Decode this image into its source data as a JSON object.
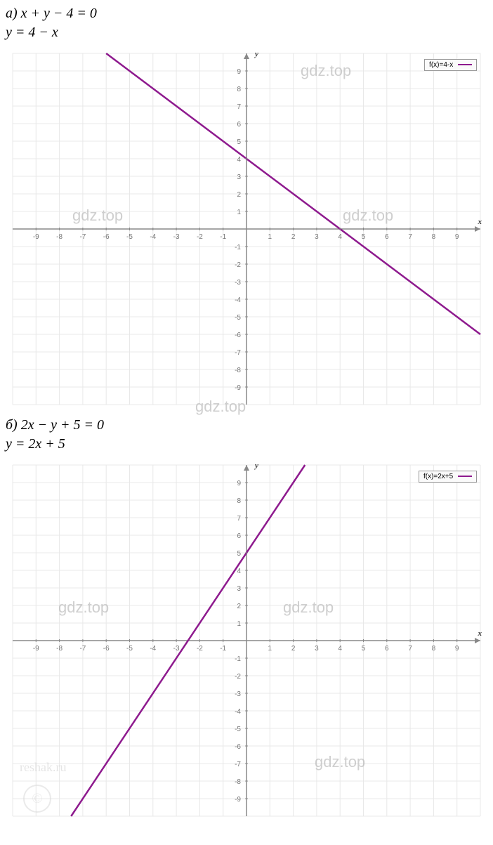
{
  "problem_a": {
    "label": "а)",
    "equation1": "x + y − 4 = 0",
    "equation2": "y = 4 − x"
  },
  "problem_b": {
    "label": "б)",
    "equation1": "2x − y + 5 = 0",
    "equation2": "y = 2x + 5"
  },
  "chart_a": {
    "type": "line",
    "legend_text": "f(x)=4-x",
    "line_color": "#8e1a8e",
    "line_width": 2.5,
    "xlim": [
      -10,
      10
    ],
    "ylim": [
      -10,
      10
    ],
    "xtick_step": 1,
    "ytick_step": 1,
    "grid_color": "#e8e8e8",
    "axis_color": "#888888",
    "background_color": "#ffffff",
    "x_axis_label": "x",
    "y_axis_label": "y",
    "line_points": [
      [
        -6,
        10
      ],
      [
        10,
        -6
      ]
    ],
    "watermarks": [
      "gdz.top",
      "gdz.top",
      "gdz.top",
      "gdz.top"
    ]
  },
  "chart_b": {
    "type": "line",
    "legend_text": "f(x)=2x+5",
    "line_color": "#8e1a8e",
    "line_width": 2.5,
    "xlim": [
      -10,
      10
    ],
    "ylim": [
      -10,
      10
    ],
    "xtick_step": 1,
    "ytick_step": 1,
    "grid_color": "#e8e8e8",
    "axis_color": "#888888",
    "background_color": "#ffffff",
    "x_axis_label": "x",
    "y_axis_label": "y",
    "line_points": [
      [
        -7.5,
        -10
      ],
      [
        2.5,
        10
      ]
    ],
    "watermarks": [
      "gdz.top",
      "gdz.top",
      "gdz.top"
    ],
    "reshak_text": "reshak.ru",
    "copyright_symbol": "©"
  }
}
